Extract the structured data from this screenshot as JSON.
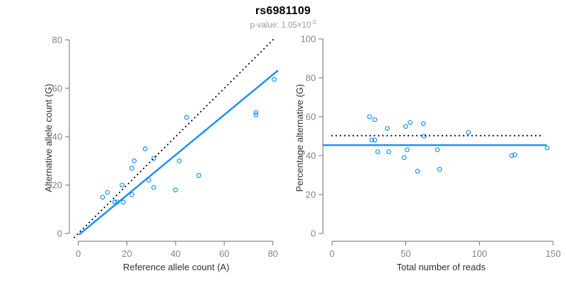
{
  "figure": {
    "title": "rs6981109",
    "subtitle_base": "p-value: 1.05×10",
    "subtitle_exponent": "-3",
    "colors": {
      "accent_blue": "#1E90FF",
      "dotted_black": "#000000",
      "axis_line": "#878787",
      "tick_label": "#848484",
      "axis_title": "#303030",
      "title": "#000000",
      "subtitle": "#9a9a9a"
    }
  },
  "chart_data": [
    {
      "type": "scatter",
      "name": "allele-counts-scatter",
      "title": "rs6981109",
      "xlabel": "Reference allele count (A)",
      "ylabel": "Alternative allele count (G)",
      "xticks": [
        0,
        20,
        40,
        60,
        80
      ],
      "yticks": [
        0,
        20,
        40,
        60,
        80
      ],
      "xlim": [
        -3,
        84
      ],
      "ylim": [
        -3,
        84
      ],
      "legend": "none",
      "grid": false,
      "points": [
        [
          10,
          15
        ],
        [
          12,
          17
        ],
        [
          15,
          13
        ],
        [
          16,
          13
        ],
        [
          18.5,
          13
        ],
        [
          18,
          20
        ],
        [
          22,
          16
        ],
        [
          22,
          27
        ],
        [
          23,
          30
        ],
        [
          27.5,
          35
        ],
        [
          29,
          22
        ],
        [
          31,
          19
        ],
        [
          31,
          31
        ],
        [
          40,
          18
        ],
        [
          41.5,
          30
        ],
        [
          44.5,
          48
        ],
        [
          49.5,
          24
        ],
        [
          73,
          49
        ],
        [
          73,
          50
        ],
        [
          80.5,
          63.7
        ]
      ],
      "lines": [
        {
          "name": "identity-line",
          "style": "dotted",
          "color": "#000000",
          "width": 1.8,
          "from": [
            -1.8,
            -1.8
          ],
          "to": [
            80.8,
            80.8
          ]
        },
        {
          "name": "regression-line",
          "style": "solid",
          "color": "#1E90FF",
          "width": 2.5,
          "from": [
            0.3,
            -0.5
          ],
          "to": [
            82.1,
            67.4
          ]
        }
      ]
    },
    {
      "type": "scatter",
      "name": "percentage-vs-reads-scatter",
      "title": "rs6981109",
      "xlabel": "Total number of reads",
      "ylabel": "Percentage alternative (G)",
      "xticks": [
        0,
        50,
        100,
        150
      ],
      "yticks": [
        0,
        20,
        40,
        60,
        80,
        100
      ],
      "xlim": [
        -6,
        156
      ],
      "ylim": [
        -4,
        104
      ],
      "legend": "none",
      "grid": false,
      "points": [
        [
          25.5,
          60
        ],
        [
          29,
          58.5
        ],
        [
          27,
          48
        ],
        [
          29,
          48
        ],
        [
          31,
          42
        ],
        [
          37.5,
          54
        ],
        [
          38.5,
          42
        ],
        [
          49,
          39
        ],
        [
          50,
          55
        ],
        [
          51,
          43
        ],
        [
          53,
          57
        ],
        [
          58,
          32
        ],
        [
          62,
          56.5
        ],
        [
          62.5,
          50
        ],
        [
          71.5,
          43
        ],
        [
          73,
          33
        ],
        [
          92.5,
          52
        ],
        [
          122,
          40
        ],
        [
          124,
          40.5
        ],
        [
          146,
          44
        ]
      ],
      "lines": [
        {
          "name": "fifty-percent-line",
          "style": "dotted",
          "color": "#000000",
          "width": 1.8,
          "from": [
            -0.5,
            50.3
          ],
          "to": [
            143.5,
            50.3
          ]
        },
        {
          "name": "mean-percentage-line",
          "style": "solid",
          "color": "#1E90FF",
          "width": 2.5,
          "from": [
            -6,
            45.4
          ],
          "to": [
            145.6,
            45.4
          ]
        }
      ]
    }
  ]
}
